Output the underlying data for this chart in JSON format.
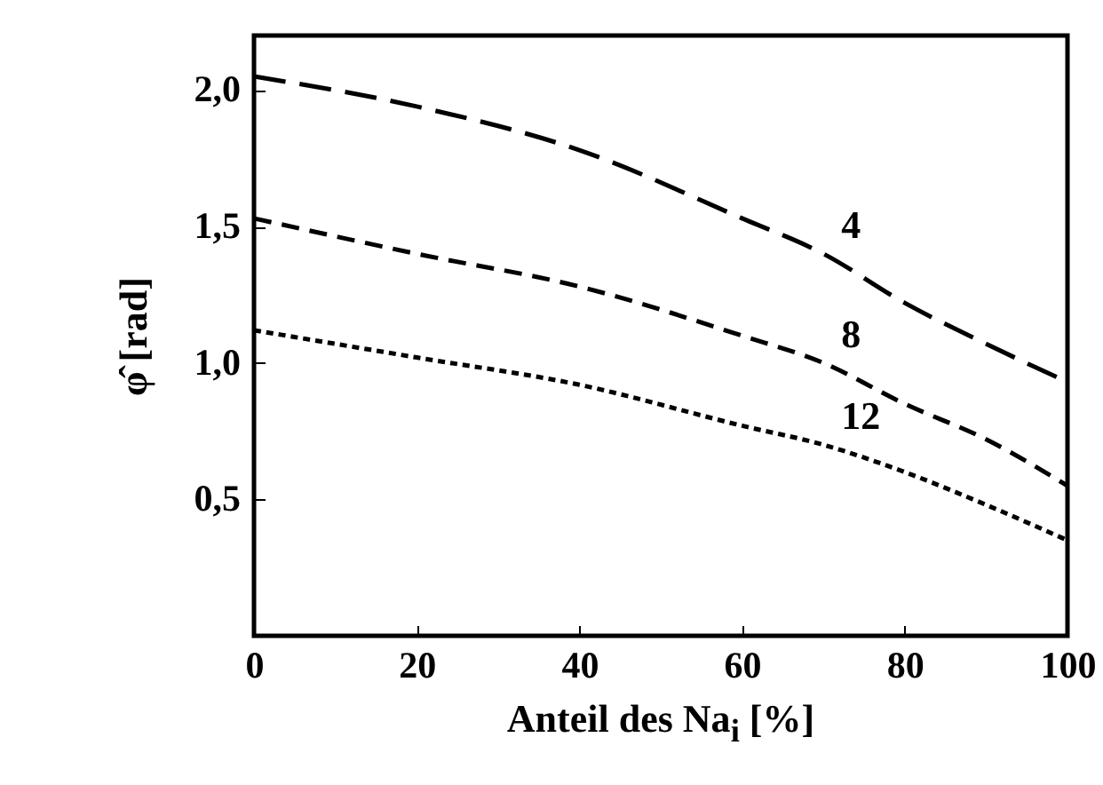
{
  "chart_data": {
    "type": "line",
    "xlabel": "Anteil des Na$_{i}$ [%]",
    "ylabel": "φ̂ [rad]",
    "x": [
      0,
      20,
      40,
      60,
      70,
      80,
      90,
      100
    ],
    "series": [
      {
        "name": "4",
        "color": "#000000",
        "line_style": "dashed",
        "values": [
          2.05,
          1.94,
          1.78,
          1.53,
          1.4,
          1.22,
          1.07,
          0.93
        ]
      },
      {
        "name": "8",
        "color": "#000000",
        "line_style": "dashed",
        "values": [
          1.53,
          1.4,
          1.28,
          1.1,
          1.0,
          0.85,
          0.72,
          0.55
        ]
      },
      {
        "name": "12",
        "color": "#000000",
        "line_style": "dotted",
        "values": [
          1.12,
          1.02,
          0.92,
          0.77,
          0.7,
          0.6,
          0.48,
          0.35
        ]
      }
    ],
    "xlim": [
      0,
      100
    ],
    "xticks": [
      0,
      20,
      40,
      60,
      80,
      100
    ],
    "ylim": [
      0,
      2.2
    ],
    "yticks": [
      {
        "value": 0.5,
        "label": "0,5"
      },
      {
        "value": 1,
        "label": "1,0"
      },
      {
        "value": 1.5,
        "label": "1,5"
      },
      {
        "value": 2,
        "label": "2,0"
      }
    ],
    "grid": false
  }
}
